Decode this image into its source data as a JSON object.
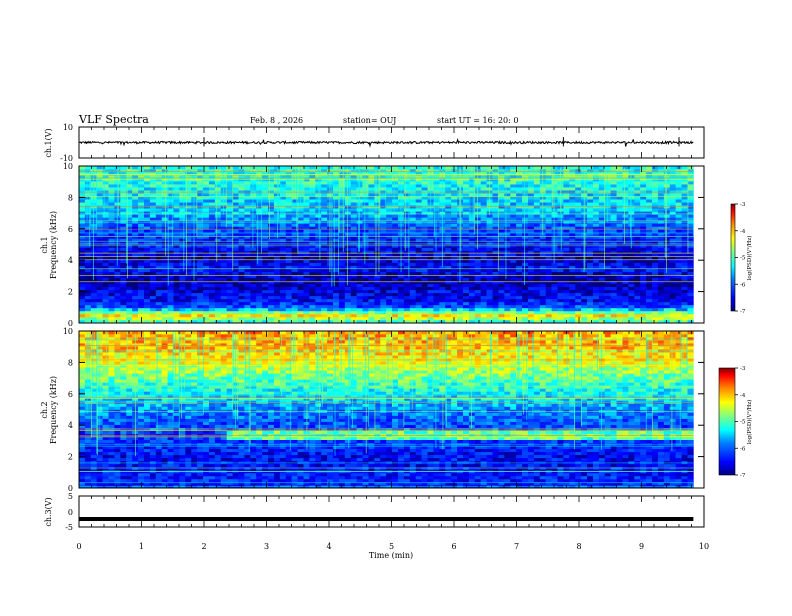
{
  "header": {
    "title": "VLF Spectra",
    "date": "Feb. 8 , 2026",
    "station": "station= OUJ",
    "start": "start  UT =   16: 20: 0"
  },
  "chart_data": [
    {
      "type": "line",
      "panel": "ch1-waveform",
      "ylabel": "ch.1(V)",
      "ylim": [
        -10,
        10
      ],
      "y_ticks": [
        "10",
        "-10"
      ],
      "baseline": 0,
      "color": "#000000",
      "series": [
        {
          "values": [
            0.2,
            0.0,
            0.3,
            0.1
          ]
        }
      ]
    },
    {
      "type": "heatmap",
      "panel": "ch1-spectrogram",
      "ylabel": "ch.1",
      "ylabel2": "Frequency (kHz)",
      "ylim": [
        0,
        10
      ],
      "y_ticks": [
        "0",
        "2",
        "4",
        "6",
        "8",
        "10"
      ],
      "colorbar": {
        "label": "log(PSD)(V²/Hz)",
        "ticks": [
          "-3",
          "-4",
          "-5",
          "-6",
          "-7"
        ],
        "range": [
          -7,
          -3
        ],
        "colors": [
          "#00007f",
          "#0000ff",
          "#007fff",
          "#00ffff",
          "#7fff7f",
          "#ffff00",
          "#ff7f00",
          "#ff0000",
          "#7f0000"
        ]
      },
      "profile": [
        {
          "f": 0.0,
          "v": -5.3
        },
        {
          "f": 0.5,
          "v": -4.2
        },
        {
          "f": 1.0,
          "v": -6.0
        },
        {
          "f": 1.5,
          "v": -6.5
        },
        {
          "f": 2.0,
          "v": -6.6
        },
        {
          "f": 2.5,
          "v": -6.8
        },
        {
          "f": 3.0,
          "v": -6.7
        },
        {
          "f": 3.5,
          "v": -6.4
        },
        {
          "f": 4.0,
          "v": -6.7
        },
        {
          "f": 5.0,
          "v": -6.4
        },
        {
          "f": 6.0,
          "v": -6.1
        },
        {
          "f": 7.0,
          "v": -5.6
        },
        {
          "f": 8.0,
          "v": -5.4
        },
        {
          "f": 9.0,
          "v": -5.2
        },
        {
          "f": 10.0,
          "v": -5.2
        }
      ]
    },
    {
      "type": "heatmap",
      "panel": "ch2-spectrogram",
      "ylabel": "ch.2",
      "ylabel2": "Frequency (kHz)",
      "ylim": [
        0,
        10
      ],
      "y_ticks": [
        "0",
        "2",
        "4",
        "6",
        "8",
        "10"
      ],
      "colorbar": {
        "label": "log(PSD)(V²/Hz)",
        "ticks": [
          "-3",
          "-4",
          "-5",
          "-6",
          "-7"
        ],
        "range": [
          -7,
          -3
        ],
        "colors": [
          "#00007f",
          "#0000ff",
          "#007fff",
          "#00ffff",
          "#7fff7f",
          "#ffff00",
          "#ff7f00",
          "#ff0000",
          "#7f0000"
        ]
      },
      "profile": [
        {
          "f": 0.0,
          "v": -6.3
        },
        {
          "f": 1.0,
          "v": -6.4
        },
        {
          "f": 2.0,
          "v": -6.5
        },
        {
          "f": 3.0,
          "v": -6.2
        },
        {
          "f": 4.0,
          "v": -6.1
        },
        {
          "f": 5.0,
          "v": -5.8
        },
        {
          "f": 6.0,
          "v": -5.3
        },
        {
          "f": 7.0,
          "v": -4.9
        },
        {
          "f": 8.0,
          "v": -4.4
        },
        {
          "f": 9.0,
          "v": -4.0
        },
        {
          "f": 10.0,
          "v": -3.9
        }
      ]
    },
    {
      "type": "line",
      "panel": "ch3-waveform",
      "ylabel": "ch.3(V)",
      "ylim": [
        -5,
        5
      ],
      "y_ticks": [
        "5",
        "0",
        "-5"
      ],
      "baseline": -2.4,
      "color": "#000000",
      "series": [
        {
          "values": [
            -2.4,
            -2.4
          ]
        }
      ]
    }
  ],
  "x_axis": {
    "label": "Time (min)",
    "range": [
      0,
      10
    ],
    "ticks": [
      "0",
      "1",
      "2",
      "3",
      "4",
      "5",
      "6",
      "7",
      "8",
      "9",
      "10"
    ],
    "data_end": 9.83
  }
}
